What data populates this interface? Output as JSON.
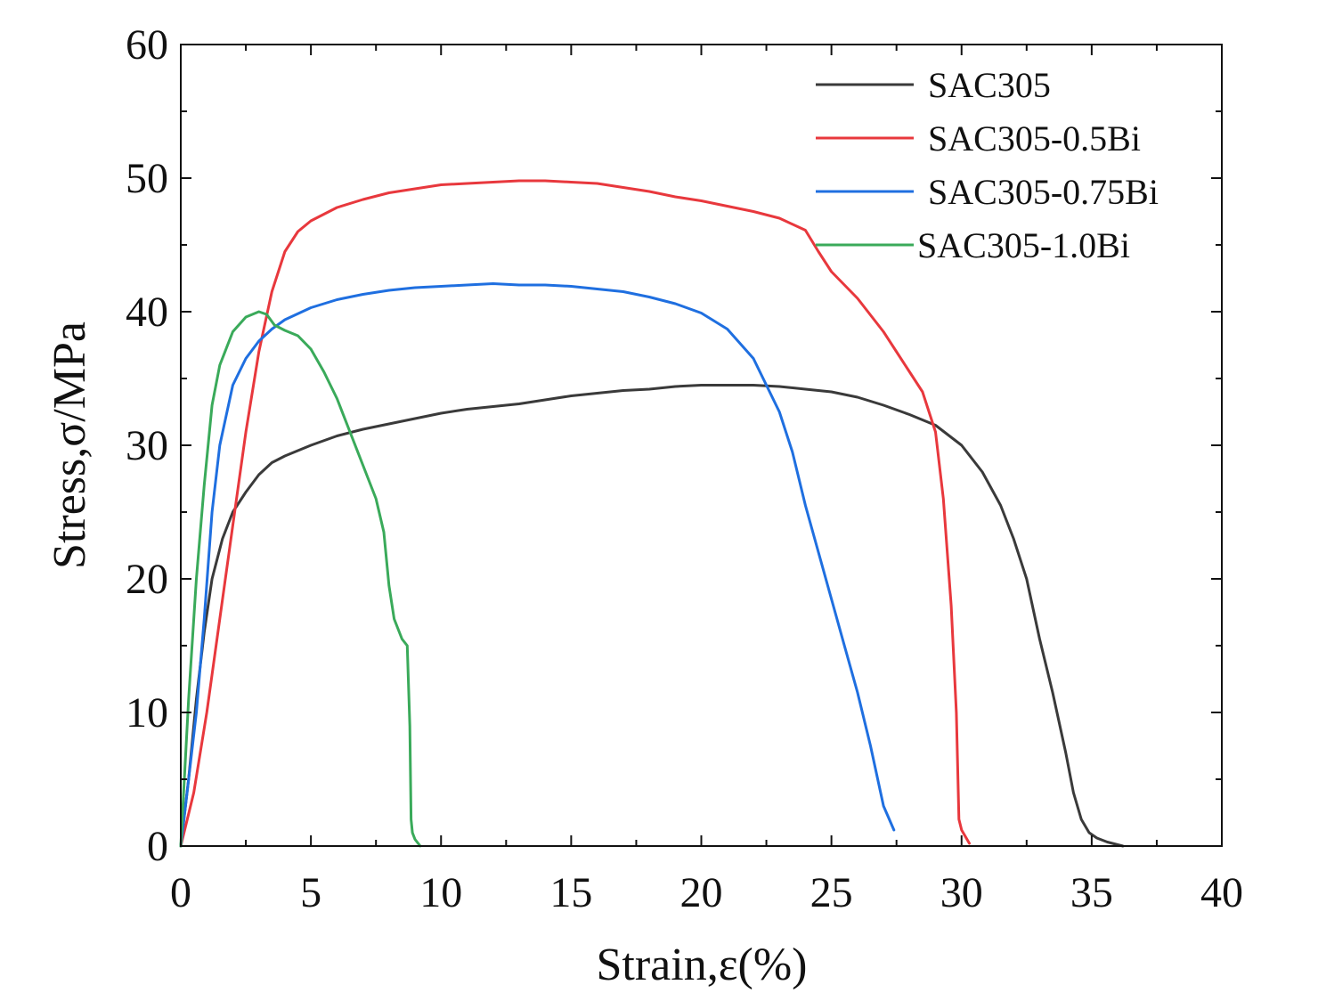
{
  "chart_data": {
    "type": "line",
    "title": "",
    "xlabel": "Strain,ε(%)",
    "ylabel": "Stress,σ/MPa",
    "xlim": [
      0,
      40
    ],
    "ylim": [
      0,
      60
    ],
    "xticks": [
      0,
      5,
      10,
      15,
      20,
      25,
      30,
      35,
      40
    ],
    "yticks": [
      0,
      10,
      20,
      30,
      40,
      50,
      60
    ],
    "grid": false,
    "legend_position": "top-right",
    "series": [
      {
        "name": "SAC305",
        "color": "#3a3a3a",
        "x": [
          0,
          0.3,
          0.6,
          0.9,
          1.2,
          1.6,
          2.0,
          2.5,
          3.0,
          3.5,
          4.0,
          5.0,
          6.0,
          7.0,
          8.0,
          9.0,
          10.0,
          11.0,
          12.0,
          13.0,
          14.0,
          15.0,
          16.0,
          17.0,
          18.0,
          19.0,
          20.0,
          21.0,
          22.0,
          23.0,
          24.0,
          25.0,
          26.0,
          27.0,
          28.0,
          29.0,
          30.0,
          30.8,
          31.5,
          32.0,
          32.5,
          33.0,
          33.5,
          34.0,
          34.3,
          34.6,
          34.9,
          35.2,
          35.6,
          36.2
        ],
        "y": [
          0,
          5,
          11,
          16,
          20,
          23,
          25,
          26.5,
          27.8,
          28.7,
          29.2,
          30.0,
          30.7,
          31.2,
          31.6,
          32.0,
          32.4,
          32.7,
          32.9,
          33.1,
          33.4,
          33.7,
          33.9,
          34.1,
          34.2,
          34.4,
          34.5,
          34.5,
          34.5,
          34.4,
          34.2,
          34.0,
          33.6,
          33.0,
          32.3,
          31.5,
          30.0,
          28.0,
          25.5,
          23.0,
          20.0,
          15.5,
          11.5,
          7.0,
          4.0,
          2.0,
          1.0,
          0.6,
          0.3,
          0
        ]
      },
      {
        "name": "SAC305-0.5Bi",
        "color": "#e8383d",
        "x": [
          0,
          0.5,
          1.0,
          1.5,
          2.0,
          2.5,
          3.0,
          3.5,
          4.0,
          4.5,
          5.0,
          6.0,
          7.0,
          8.0,
          9.0,
          10.0,
          11.0,
          12.0,
          13.0,
          14.0,
          15.0,
          16.0,
          17.0,
          18.0,
          19.0,
          20.0,
          21.0,
          22.0,
          23.0,
          24.0,
          24.5,
          25.0,
          26.0,
          27.0,
          27.5,
          28.0,
          28.5,
          29.0,
          29.3,
          29.6,
          29.8,
          29.9,
          30.0,
          30.3
        ],
        "y": [
          0,
          4,
          10,
          17,
          24,
          31,
          37,
          41.5,
          44.5,
          46.0,
          46.8,
          47.8,
          48.4,
          48.9,
          49.2,
          49.5,
          49.6,
          49.7,
          49.8,
          49.8,
          49.7,
          49.6,
          49.3,
          49.0,
          48.6,
          48.3,
          47.9,
          47.5,
          47.0,
          46.1,
          44.5,
          43.0,
          41.0,
          38.5,
          37.0,
          35.5,
          34.0,
          31.0,
          26.0,
          18.0,
          10.0,
          2.0,
          1.2,
          0.2
        ]
      },
      {
        "name": "SAC305-0.75Bi",
        "color": "#1f6fe0",
        "x": [
          0,
          0.3,
          0.6,
          0.9,
          1.2,
          1.5,
          2.0,
          2.5,
          3.0,
          3.5,
          4.0,
          5.0,
          6.0,
          7.0,
          8.0,
          9.0,
          10.0,
          11.0,
          12.0,
          13.0,
          14.0,
          15.0,
          16.0,
          17.0,
          18.0,
          19.0,
          20.0,
          21.0,
          22.0,
          22.5,
          23.0,
          23.5,
          24.0,
          24.5,
          25.0,
          25.5,
          26.0,
          26.5,
          27.0,
          27.4
        ],
        "y": [
          0,
          5,
          10,
          17,
          25,
          30,
          34.5,
          36.5,
          37.8,
          38.7,
          39.4,
          40.3,
          40.9,
          41.3,
          41.6,
          41.8,
          41.9,
          42.0,
          42.1,
          42.0,
          42.0,
          41.9,
          41.7,
          41.5,
          41.1,
          40.6,
          39.9,
          38.7,
          36.5,
          34.5,
          32.5,
          29.5,
          25.5,
          22.0,
          18.5,
          15.0,
          11.5,
          7.5,
          3.0,
          1.2
        ]
      },
      {
        "name": "SAC305-1.0Bi",
        "color": "#3aaa5a",
        "x": [
          0,
          0.3,
          0.6,
          0.9,
          1.2,
          1.5,
          2.0,
          2.5,
          3.0,
          3.3,
          3.6,
          4.0,
          4.5,
          5.0,
          5.5,
          6.0,
          6.5,
          7.0,
          7.5,
          7.8,
          8.0,
          8.2,
          8.5,
          8.7,
          8.8,
          8.85,
          8.9,
          9.0,
          9.2
        ],
        "y": [
          0,
          11,
          20,
          27,
          33,
          36,
          38.5,
          39.6,
          40.0,
          39.8,
          39.0,
          38.6,
          38.2,
          37.2,
          35.5,
          33.5,
          31.0,
          28.5,
          26.0,
          23.5,
          19.5,
          17.0,
          15.5,
          15.0,
          9.0,
          2.0,
          1.0,
          0.5,
          0
        ]
      }
    ]
  }
}
